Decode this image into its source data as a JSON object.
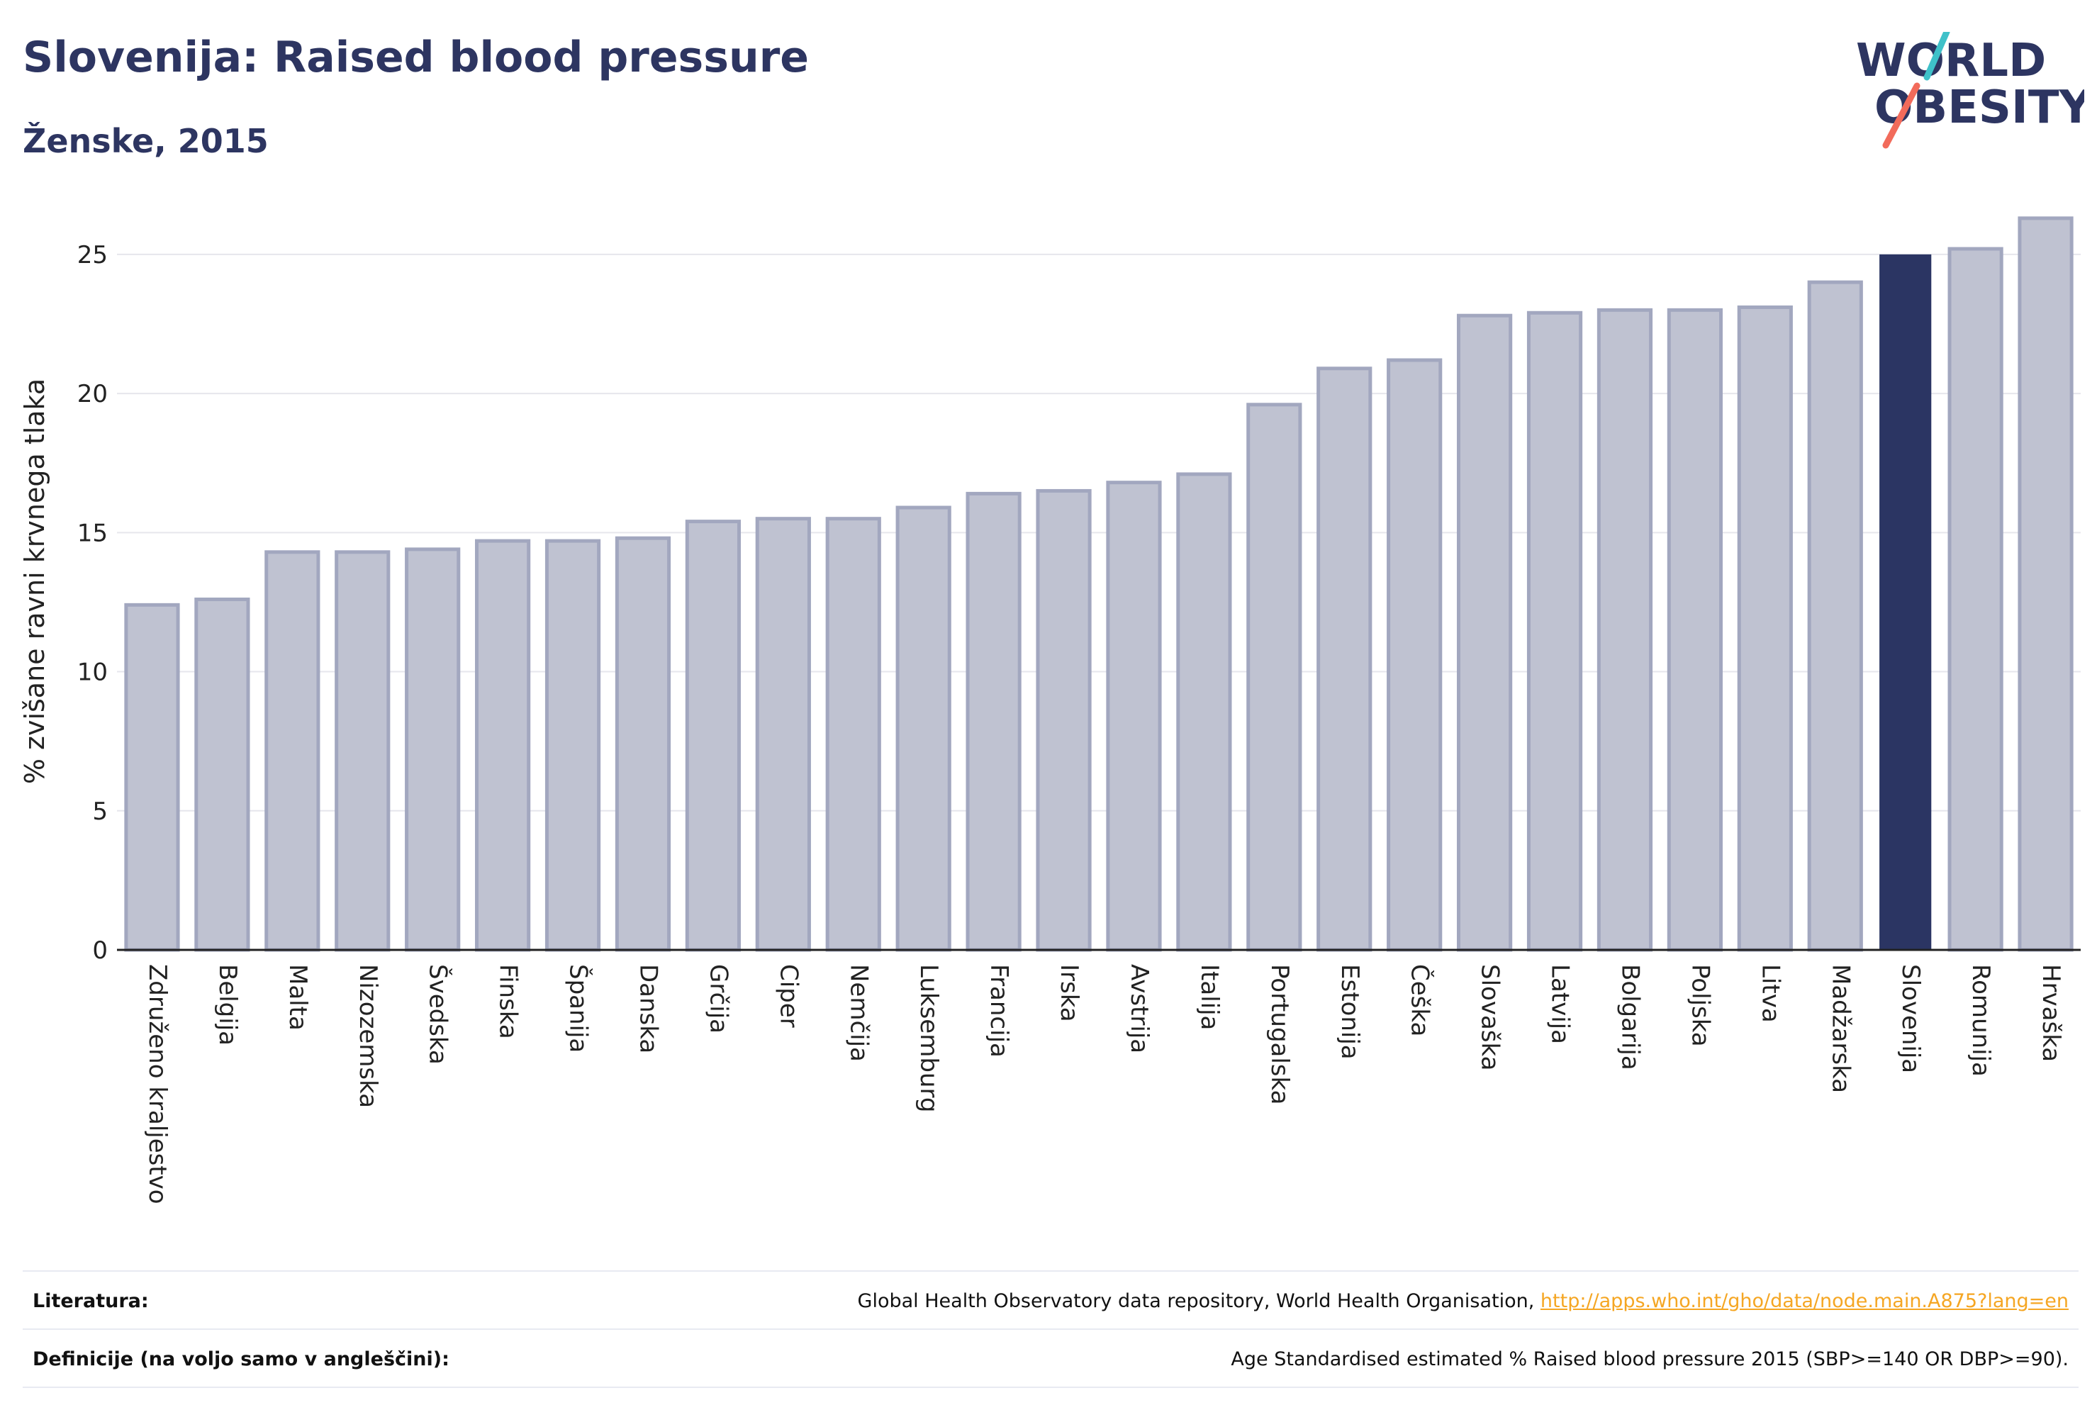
{
  "header": {
    "title": "Slovenija: Raised blood pressure",
    "subtitle": "Ženske, 2015"
  },
  "logo": {
    "line1": "WORLD",
    "line2": "OBESITY"
  },
  "colors": {
    "highlight": "#2b3563",
    "bar": "#bfc2d1",
    "bar_border": "#a2a7bf",
    "axis": "#222222",
    "grid": "#e6e6ec"
  },
  "chart_data": {
    "type": "bar",
    "ylabel": "% zvišane ravni krvnega tlaka",
    "ylim": [
      0,
      26.5
    ],
    "yticks": [
      0,
      5,
      10,
      15,
      20,
      25
    ],
    "grid": true,
    "highlight": "Slovenija",
    "categories": [
      "Združeno kraljestvo",
      "Belgija",
      "Malta",
      "Nizozemska",
      "Švedska",
      "Finska",
      "Španija",
      "Danska",
      "Grčija",
      "Ciper",
      "Nemčija",
      "Luksemburg",
      "Francija",
      "Irska",
      "Avstrija",
      "Italija",
      "Portugalska",
      "Estonija",
      "Češka",
      "Slovaška",
      "Latvija",
      "Bolgarija",
      "Poljska",
      "Litva",
      "Madžarska",
      "Slovenija",
      "Romunija",
      "Hrvaška"
    ],
    "values": [
      12.4,
      12.6,
      14.3,
      14.3,
      14.4,
      14.7,
      14.7,
      14.8,
      15.4,
      15.5,
      15.5,
      15.9,
      16.4,
      16.5,
      16.8,
      17.1,
      19.6,
      20.9,
      21.2,
      22.8,
      22.9,
      23.0,
      23.0,
      23.1,
      24.0,
      25.0,
      25.2,
      26.3
    ]
  },
  "footer": {
    "sources_label": "Literatura:",
    "sources_text": "Global Health Observatory data repository, World Health Organisation, ",
    "sources_link": "http://apps.who.int/gho/data/node.main.A875?lang=en",
    "definitions_label": "Definicije (na voljo samo v angleščini):",
    "definitions_text": "Age Standardised estimated % Raised blood pressure 2015 (SBP>=140 OR DBP>=90)."
  }
}
